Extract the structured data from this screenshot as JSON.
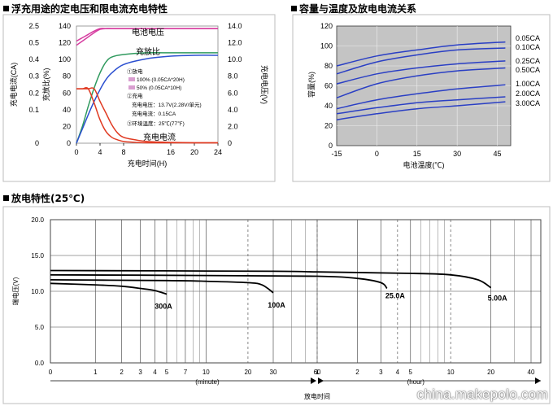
{
  "panels": {
    "float": {
      "title": "浮充用途的定电压和限电流充电特性"
    },
    "temp": {
      "title": "容量与温度及放电电流关系"
    },
    "discharge": {
      "title": "放电特性(25℃)"
    }
  },
  "watermark": "china.makepolo.com",
  "chart_data": [
    {
      "id": "float",
      "type": "line",
      "title": "浮充用途的定电压和限电流充电特性",
      "xlabel": "充电时间(H)",
      "x_ticks": [
        0,
        4,
        8,
        16,
        20,
        24
      ],
      "xlim": [
        0,
        24
      ],
      "y_left_outer": {
        "label": "充电电流(CA)",
        "ticks": [
          "2.5",
          "0.5",
          "0.4",
          "0.3",
          "0.2",
          "0.1",
          "0"
        ]
      },
      "y_left_inner": {
        "label": "充放比(%)",
        "ticks": [
          0,
          20,
          40,
          60,
          80,
          100,
          120,
          140
        ],
        "ylim": [
          0,
          140
        ]
      },
      "y_right": {
        "label": "充电电压(V)",
        "ticks": [
          "0",
          "2.0",
          "4.0",
          "6.0",
          "8.0",
          "10.0",
          "12.0",
          "14.0"
        ],
        "ylim": [
          0,
          14
        ]
      },
      "annotations": [
        "电池电压",
        "充放比",
        "充电电流"
      ],
      "legend": {
        "items": [
          "①放电",
          "100% (0.05CA*20H)",
          "50% (0.05CA*10H)",
          "②充电",
          "充电电压：13.7V(2.28V/单元)",
          "充电电流：0.15CA",
          "③环境温度：25℃(77℉)"
        ]
      },
      "series": [
        {
          "name": "电池电压",
          "color": "#d63ca0",
          "x": [
            0,
            1,
            2,
            3,
            4,
            5,
            6,
            8,
            12,
            16,
            20,
            24
          ],
          "y": [
            12.2,
            12.6,
            13.0,
            13.4,
            13.7,
            13.7,
            13.7,
            13.7,
            13.7,
            13.7,
            13.7,
            13.7
          ],
          "axis": "right"
        },
        {
          "name": "电池电压",
          "color": "#d63ca0",
          "x": [
            0,
            1,
            2,
            3,
            4,
            5,
            6,
            8,
            12,
            16,
            20,
            24
          ],
          "y": [
            11.7,
            12.2,
            12.7,
            13.2,
            13.6,
            13.7,
            13.7,
            13.7,
            13.7,
            13.7,
            13.7,
            13.7
          ],
          "axis": "right"
        },
        {
          "name": "充放比",
          "color": "#2f9a5e",
          "x": [
            0,
            1,
            2,
            3,
            4,
            5,
            6,
            8,
            12,
            16,
            20,
            24
          ],
          "y": [
            0,
            20,
            44,
            66,
            84,
            97,
            103,
            106,
            108,
            108,
            108,
            108
          ],
          "axis": "inner"
        },
        {
          "name": "充放比",
          "color": "#2b4fd0",
          "x": [
            0,
            1,
            2,
            3,
            4,
            5,
            6,
            8,
            12,
            16,
            20,
            24
          ],
          "y": [
            0,
            17,
            34,
            50,
            64,
            76,
            84,
            94,
            101,
            104,
            105,
            105
          ],
          "axis": "inner"
        },
        {
          "name": "充电电流",
          "color": "#e03a22",
          "x": [
            0,
            1,
            2,
            3,
            4,
            5,
            6,
            7,
            8,
            10,
            12,
            16,
            20,
            24
          ],
          "y": [
            65,
            65,
            65,
            65,
            50,
            36,
            22,
            12,
            7,
            4,
            2,
            1,
            0.5,
            0.5
          ],
          "axis": "inner"
        },
        {
          "name": "充电电流",
          "color": "#e03a22",
          "x": [
            0,
            1,
            2,
            3,
            4,
            5,
            6,
            7,
            8,
            10,
            12,
            16,
            20,
            24
          ],
          "y": [
            65,
            65,
            65,
            48,
            28,
            14,
            7,
            4,
            2,
            1,
            0.5,
            0.5,
            0.5,
            0.5
          ],
          "axis": "inner"
        }
      ]
    },
    {
      "id": "temp",
      "type": "line",
      "title": "容量与温度及放电电流关系",
      "xlabel": "电池温度(℃)",
      "ylabel": "容量(%)",
      "x_ticks": [
        -15,
        0,
        15,
        30,
        45
      ],
      "xlim": [
        -15,
        50
      ],
      "y_ticks": [
        0,
        20,
        40,
        60,
        80,
        100,
        120
      ],
      "ylim": [
        0,
        120
      ],
      "series": [
        {
          "name": "0.05CA",
          "x": [
            -15,
            0,
            15,
            30,
            48
          ],
          "y": [
            80,
            90,
            96,
            101,
            104
          ]
        },
        {
          "name": "0.10CA",
          "x": [
            -15,
            0,
            15,
            30,
            48
          ],
          "y": [
            72,
            84,
            91,
            96,
            98
          ]
        },
        {
          "name": "0.25CA",
          "x": [
            -15,
            0,
            15,
            30,
            48
          ],
          "y": [
            62,
            72,
            78,
            82,
            85
          ]
        },
        {
          "name": "0.50CA",
          "x": [
            -15,
            0,
            15,
            30,
            48
          ],
          "y": [
            48,
            62,
            70,
            75,
            78
          ]
        },
        {
          "name": "1.00CA",
          "x": [
            -15,
            0,
            15,
            30,
            48
          ],
          "y": [
            37,
            46,
            52,
            57,
            61
          ]
        },
        {
          "name": "2.00CA",
          "x": [
            -15,
            0,
            15,
            30,
            48
          ],
          "y": [
            32,
            38,
            43,
            46,
            49
          ]
        },
        {
          "name": "3.00CA",
          "x": [
            -15,
            0,
            15,
            30,
            48
          ],
          "y": [
            26,
            32,
            37,
            40,
            44
          ]
        }
      ]
    },
    {
      "id": "discharge",
      "type": "line",
      "title": "放电特性(25℃)",
      "xlabel": "放电时间",
      "ylabel": "端电压(V)",
      "y_ticks": [
        "0.0",
        "5.0",
        "10.0",
        "15.0",
        "20.0"
      ],
      "ylim": [
        0,
        20
      ],
      "minute_ticks": [
        0,
        1,
        2,
        3,
        4,
        5,
        7,
        10,
        20,
        30,
        60
      ],
      "minute_unit": "(minute)",
      "hour_ticks": [
        1,
        2,
        3,
        4,
        5,
        10,
        20,
        40
      ],
      "hour_unit": "(hour)",
      "series": [
        {
          "name": "300A",
          "t_min": [
            0,
            1,
            2,
            3,
            4,
            5
          ],
          "y": [
            11.1,
            10.9,
            10.7,
            10.4,
            10.1,
            9.6
          ]
        },
        {
          "name": "100A",
          "t_min": [
            0,
            5,
            10,
            20,
            25,
            30
          ],
          "y": [
            11.6,
            11.5,
            11.4,
            11.2,
            10.9,
            9.8
          ]
        },
        {
          "name": "25.0A",
          "t_min": [
            0,
            10,
            60,
            120,
            180,
            200
          ],
          "y": [
            12.3,
            12.2,
            12.1,
            11.8,
            11.2,
            10.4
          ]
        },
        {
          "name": "5.00A",
          "t_min": [
            0,
            30,
            60,
            300,
            600,
            960,
            1200
          ],
          "y": [
            12.9,
            12.8,
            12.7,
            12.5,
            12.3,
            11.6,
            10.5
          ]
        }
      ]
    }
  ]
}
